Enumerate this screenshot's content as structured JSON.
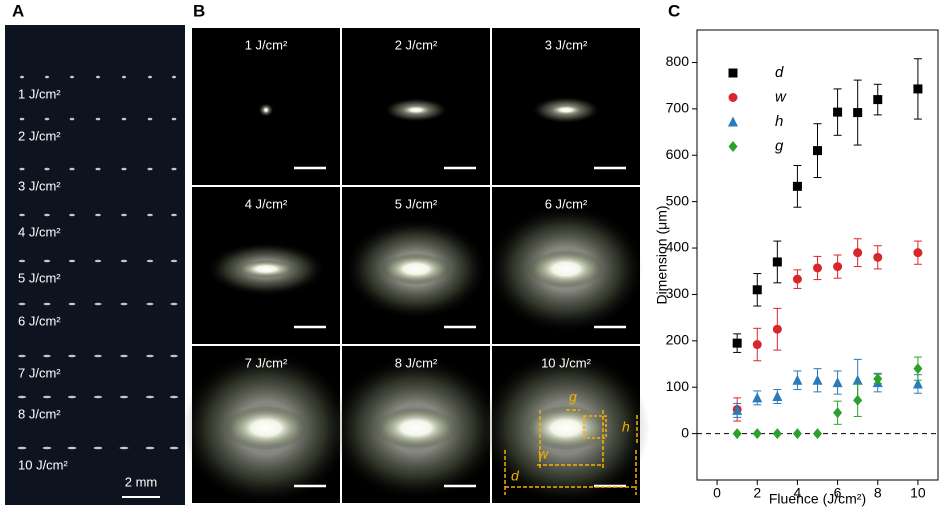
{
  "panels": [
    "A",
    "B",
    "C"
  ],
  "panel_a": {
    "labels": [
      "1 J/cm²",
      "2 J/cm²",
      "3 J/cm²",
      "4 J/cm²",
      "5 J/cm²",
      "6 J/cm²",
      "7 J/cm²",
      "8 J/cm²",
      "10 J/cm²"
    ],
    "scale_bar": "2 mm"
  },
  "panel_b": {
    "labels": [
      "1 J/cm²",
      "2 J/cm²",
      "3 J/cm²",
      "4 J/cm²",
      "5 J/cm²",
      "6 J/cm²",
      "7 J/cm²",
      "8 J/cm²",
      "10 J/cm²"
    ],
    "annotations": [
      "g",
      "h",
      "w",
      "d"
    ]
  },
  "chart_data": {
    "type": "scatter",
    "xlabel": "Fluence (J/cm²)",
    "ylabel": "Dimension (μm)",
    "x": [
      1,
      2,
      3,
      4,
      5,
      6,
      7,
      8,
      10
    ],
    "xlim": [
      -1,
      11
    ],
    "xticks": [
      0,
      2,
      4,
      6,
      8,
      10
    ],
    "ylim": [
      -100,
      870
    ],
    "yticks": [
      0,
      100,
      200,
      300,
      400,
      500,
      600,
      700,
      800
    ],
    "reference_line": 0,
    "legend": "upper left",
    "series": [
      {
        "name": "d",
        "color": "#000000",
        "marker": "square",
        "values": [
          195,
          310,
          370,
          533,
          610,
          693,
          692,
          720,
          743
        ],
        "errors": [
          20,
          35,
          45,
          45,
          58,
          50,
          70,
          33,
          65
        ]
      },
      {
        "name": "w",
        "color": "#d9262b",
        "marker": "circle",
        "values": [
          52,
          192,
          225,
          333,
          357,
          360,
          390,
          380,
          390
        ],
        "errors": [
          25,
          35,
          45,
          20,
          25,
          25,
          30,
          25,
          25
        ]
      },
      {
        "name": "h",
        "color": "#2b7bba",
        "marker": "triangle",
        "values": [
          50,
          77,
          80,
          115,
          115,
          110,
          115,
          110,
          107
        ],
        "errors": [
          15,
          15,
          15,
          20,
          25,
          25,
          45,
          20,
          20
        ]
      },
      {
        "name": "g",
        "color": "#2ca02c",
        "marker": "diamond",
        "values": [
          0,
          0,
          0,
          0,
          0,
          45,
          72,
          118,
          140
        ],
        "errors": [
          0,
          0,
          0,
          0,
          0,
          25,
          35,
          10,
          25
        ]
      }
    ]
  }
}
